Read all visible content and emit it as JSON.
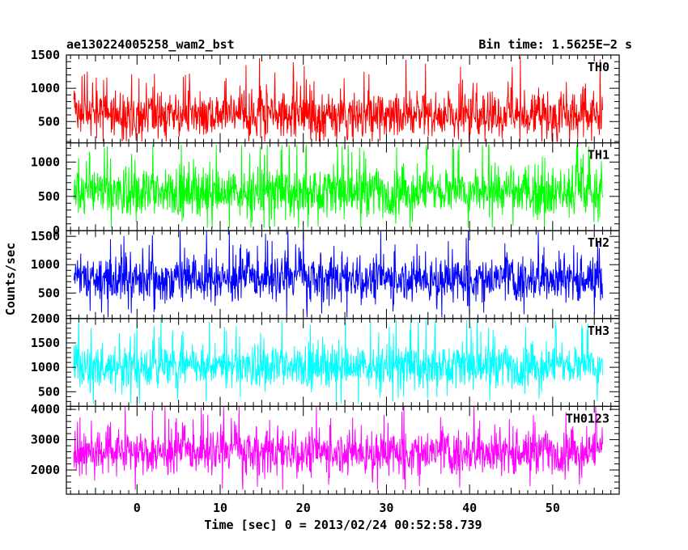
{
  "header": {
    "left_title": "ae130224005258_wam2_bst",
    "right_title": "Bin time: 1.5625E−2 s"
  },
  "chart_data": {
    "type": "line",
    "xlabel": "Time [sec] 0 = 2013/02/24 00:52:58.739",
    "ylabel": "Counts/sec",
    "xlim": [
      -8.5,
      58.0
    ],
    "x_ticks": [
      0,
      10,
      20,
      30,
      40,
      50
    ],
    "x_tick_labels": [
      "0",
      "10",
      "20",
      "30",
      "40",
      "50"
    ],
    "x_data_range": [
      -7.6,
      56.0
    ],
    "panels": [
      {
        "name": "TH0",
        "color": "#ff0000",
        "ylim": [
          180,
          1500
        ],
        "ticks": [
          500,
          1000,
          1500
        ],
        "tick_labels": [
          "500",
          "1000",
          "1500"
        ],
        "base": 600,
        "spread": 250,
        "min": 200,
        "max": 1500,
        "seed": 11
      },
      {
        "name": "TH1",
        "color": "#00ff00",
        "ylim": [
          0,
          1280
        ],
        "ticks": [
          0,
          500,
          1000
        ],
        "tick_labels": [
          "0",
          "500",
          "1000"
        ],
        "base": 560,
        "spread": 260,
        "min": 40,
        "max": 1250,
        "seed": 23
      },
      {
        "name": "TH2",
        "color": "#0000ff",
        "ylim": [
          50,
          1600
        ],
        "ticks": [
          500,
          1000,
          1500
        ],
        "tick_labels": [
          "500",
          "1000",
          "1500"
        ],
        "base": 760,
        "spread": 280,
        "min": 70,
        "max": 1600,
        "seed": 37
      },
      {
        "name": "TH3",
        "color": "#00ffff",
        "ylim": [
          200,
          2000
        ],
        "ticks": [
          500,
          1000,
          1500,
          2000
        ],
        "tick_labels": [
          "500",
          "1000",
          "1500",
          "2000"
        ],
        "base": 1020,
        "spread": 320,
        "min": 250,
        "max": 2000,
        "seed": 41
      },
      {
        "name": "TH0123",
        "color": "#ff00ff",
        "ylim": [
          1200,
          4100
        ],
        "ticks": [
          2000,
          3000,
          4000
        ],
        "tick_labels": [
          "2000",
          "3000",
          "4000"
        ],
        "base": 2600,
        "spread": 520,
        "min": 1350,
        "max": 4100,
        "seed": 53
      }
    ]
  }
}
